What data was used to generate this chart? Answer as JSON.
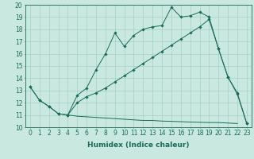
{
  "line1_x": [
    0,
    1,
    2,
    3,
    4,
    5,
    6,
    7,
    8,
    9,
    10,
    11,
    12,
    13,
    14,
    15,
    16,
    17,
    18,
    19,
    20,
    21,
    22,
    23
  ],
  "line1_y": [
    13.3,
    12.2,
    11.7,
    11.1,
    11.0,
    12.6,
    13.2,
    14.7,
    16.0,
    17.7,
    16.6,
    17.5,
    18.0,
    18.2,
    18.3,
    19.8,
    19.0,
    19.1,
    19.4,
    19.0,
    16.4,
    14.1,
    12.8,
    10.3
  ],
  "line2_x": [
    0,
    1,
    2,
    3,
    4,
    5,
    6,
    7,
    8,
    9,
    10,
    11,
    12,
    13,
    14,
    15,
    16,
    17,
    18,
    19,
    20,
    21,
    22,
    23
  ],
  "line2_y": [
    13.3,
    12.2,
    11.7,
    11.1,
    11.0,
    12.0,
    12.5,
    12.8,
    13.2,
    13.7,
    14.2,
    14.7,
    15.2,
    15.7,
    16.2,
    16.7,
    17.2,
    17.7,
    18.2,
    18.8,
    16.4,
    14.1,
    12.7,
    10.3
  ],
  "line3_x": [
    4,
    5,
    6,
    7,
    8,
    9,
    10,
    11,
    12,
    13,
    14,
    15,
    16,
    17,
    18,
    19,
    20,
    22
  ],
  "line3_y": [
    11.0,
    10.9,
    10.85,
    10.8,
    10.75,
    10.7,
    10.65,
    10.6,
    10.55,
    10.55,
    10.5,
    10.48,
    10.45,
    10.42,
    10.4,
    10.38,
    10.38,
    10.3
  ],
  "background_color": "#c8e8e0",
  "grid_color": "#a0c8be",
  "line_color": "#1a6b5a",
  "xlim": [
    -0.5,
    23.5
  ],
  "ylim": [
    10,
    20
  ],
  "xlabel": "Humidex (Indice chaleur)",
  "fontsize_ticks": 5.5,
  "fontsize_xlabel": 6.5
}
